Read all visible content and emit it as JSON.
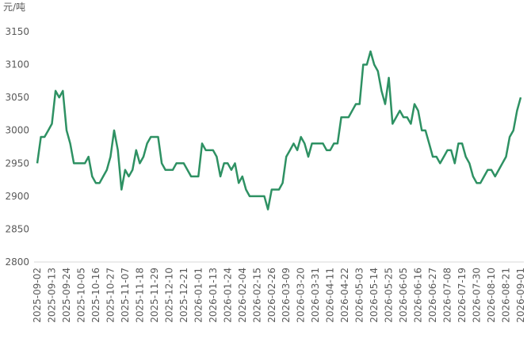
{
  "chart_data": {
    "type": "line",
    "y_label": "元/吨",
    "categories": [
      "2025-09-02",
      null,
      null,
      null,
      "2025-09-13",
      null,
      null,
      null,
      "2025-09-24",
      null,
      null,
      null,
      "2025-10-05",
      null,
      null,
      null,
      "2025-10-16",
      null,
      null,
      null,
      "2025-10-27",
      null,
      null,
      null,
      "2025-11-07",
      null,
      null,
      null,
      "2025-11-18",
      null,
      null,
      null,
      "2025-11-29",
      null,
      null,
      null,
      "2025-12-10",
      null,
      null,
      null,
      "2025-12-21",
      null,
      null,
      null,
      "2026-01-01",
      null,
      null,
      null,
      "2026-01-13",
      null,
      null,
      null,
      "2026-01-24",
      null,
      null,
      null,
      "2026-02-04",
      null,
      null,
      null,
      "2026-02-15",
      null,
      null,
      null,
      "2026-02-26",
      null,
      null,
      null,
      "2026-03-09",
      null,
      null,
      null,
      "2026-03-20",
      null,
      null,
      null,
      "2026-03-31",
      null,
      null,
      null,
      "2026-04-11",
      null,
      null,
      null,
      "2026-04-22",
      null,
      null,
      null,
      "2026-05-03",
      null,
      null,
      null,
      "2026-05-14",
      null,
      null,
      null,
      "2026-05-25",
      null,
      null,
      null,
      "2026-06-05",
      null,
      null,
      null,
      "2026-06-16",
      null,
      null,
      null,
      "2026-06-27",
      null,
      null,
      null,
      "2026-07-08",
      null,
      null,
      null,
      "2026-07-19",
      null,
      null,
      null,
      "2026-07-30",
      null,
      null,
      null,
      "2026-08-10",
      null,
      null,
      null,
      "2026-08-21",
      null,
      null,
      null,
      "2026-09-01"
    ],
    "values": [
      2950,
      2990,
      2990,
      3000,
      3010,
      3060,
      3050,
      3060,
      3000,
      2980,
      2950,
      2950,
      2950,
      2950,
      2960,
      2930,
      2920,
      2920,
      2930,
      2940,
      2960,
      3000,
      2970,
      2910,
      2940,
      2930,
      2940,
      2970,
      2950,
      2960,
      2980,
      2990,
      2990,
      2990,
      2950,
      2940,
      2940,
      2940,
      2950,
      2950,
      2950,
      2940,
      2930,
      2930,
      2930,
      2980,
      2970,
      2970,
      2970,
      2960,
      2930,
      2950,
      2950,
      2940,
      2950,
      2920,
      2930,
      2910,
      2900,
      2900,
      2900,
      2900,
      2900,
      2880,
      2910,
      2910,
      2910,
      2920,
      2960,
      2970,
      2980,
      2970,
      2990,
      2980,
      2960,
      2980,
      2980,
      2980,
      2980,
      2970,
      2970,
      2980,
      2980,
      3020,
      3020,
      3020,
      3030,
      3040,
      3040,
      3100,
      3100,
      3120,
      3100,
      3090,
      3060,
      3040,
      3080,
      3010,
      3020,
      3030,
      3020,
      3020,
      3010,
      3040,
      3030,
      3000,
      3000,
      2980,
      2960,
      2960,
      2950,
      2960,
      2970,
      2970,
      2950,
      2980,
      2980,
      2960,
      2950,
      2930,
      2920,
      2920,
      2930,
      2940,
      2940,
      2930,
      2940,
      2950,
      2960,
      2990,
      3000,
      3030,
      3050
    ],
    "color": "#2e9163",
    "ylim": [
      2800,
      3150
    ],
    "yticks": [
      2800,
      2850,
      2900,
      2950,
      3000,
      3050,
      3100,
      3150
    ],
    "grid": false
  }
}
